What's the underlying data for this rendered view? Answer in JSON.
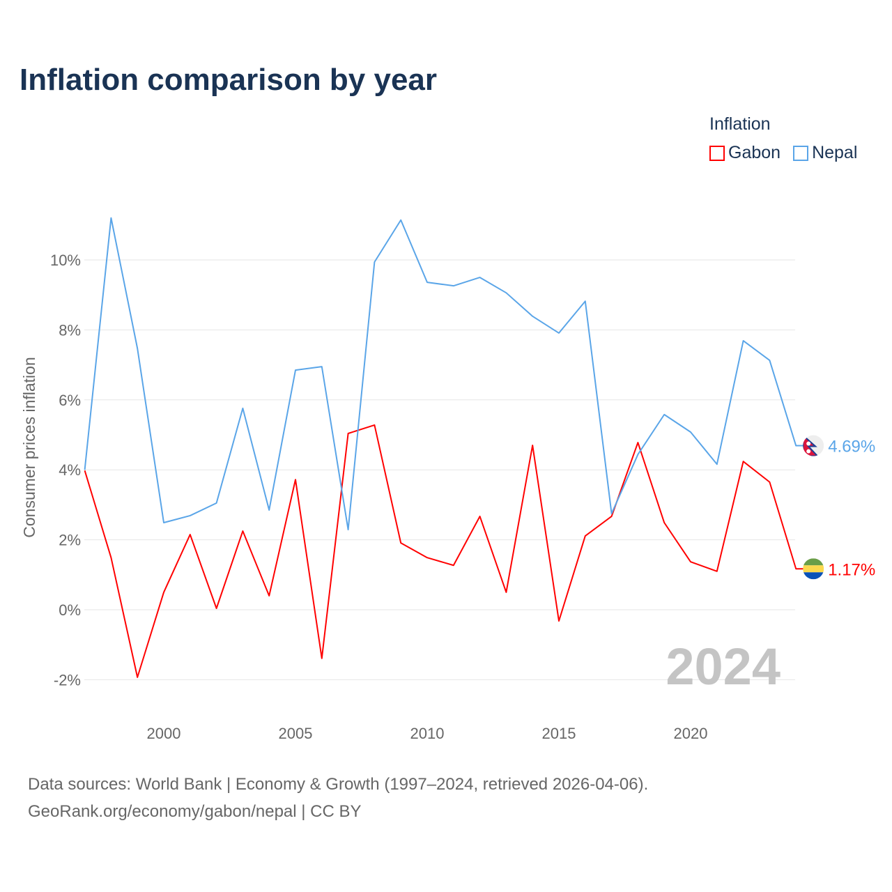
{
  "title": "Inflation comparison by year",
  "legend": {
    "title": "Inflation",
    "items": [
      {
        "label": "Gabon",
        "color": "#ff0000"
      },
      {
        "label": "Nepal",
        "color": "#5aa5e8"
      }
    ]
  },
  "source": {
    "line1": "Data sources: World Bank | Economy & Growth (1997–2024, retrieved 2026-04-06).",
    "line2": "GeoRank.org/economy/gabon/nepal | CC BY"
  },
  "chart_data": {
    "type": "line",
    "title": "Inflation comparison by year",
    "xlabel": "",
    "ylabel": "Consumer prices inflation",
    "x": [
      1997,
      1998,
      1999,
      2000,
      2001,
      2002,
      2003,
      2004,
      2005,
      2006,
      2007,
      2008,
      2009,
      2010,
      2011,
      2012,
      2013,
      2014,
      2015,
      2016,
      2017,
      2018,
      2019,
      2020,
      2021,
      2022,
      2023,
      2024
    ],
    "xticks": [
      2000,
      2005,
      2010,
      2015,
      2020
    ],
    "yticks": [
      -2,
      0,
      2,
      4,
      6,
      8,
      10
    ],
    "ytick_labels": [
      "-2%",
      "0%",
      "2%",
      "4%",
      "6%",
      "8%",
      "10%"
    ],
    "xlim": [
      1997,
      2024
    ],
    "ylim": [
      -2.6,
      11.8
    ],
    "grid": true,
    "legend_position": "top-right",
    "annotation": "2024",
    "series": [
      {
        "name": "Gabon",
        "color": "#ff0000",
        "end_label": "1.17%",
        "flag": "gabon-flag",
        "values": [
          3.98,
          1.49,
          -1.93,
          0.5,
          2.15,
          0.04,
          2.25,
          0.4,
          3.72,
          -1.39,
          5.04,
          5.28,
          1.91,
          1.49,
          1.27,
          2.67,
          0.5,
          4.7,
          -0.32,
          2.11,
          2.67,
          4.78,
          2.49,
          1.37,
          1.1,
          4.24,
          3.65,
          1.17
        ]
      },
      {
        "name": "Nepal",
        "color": "#5aa5e8",
        "end_label": "4.69%",
        "flag": "nepal-flag",
        "values": [
          4.0,
          11.2,
          7.47,
          2.49,
          2.69,
          3.05,
          5.76,
          2.85,
          6.85,
          6.95,
          2.29,
          9.94,
          11.14,
          9.36,
          9.26,
          9.5,
          9.06,
          8.39,
          7.91,
          8.82,
          2.75,
          4.44,
          5.58,
          5.08,
          4.16,
          7.69,
          7.13,
          4.69
        ]
      }
    ]
  }
}
